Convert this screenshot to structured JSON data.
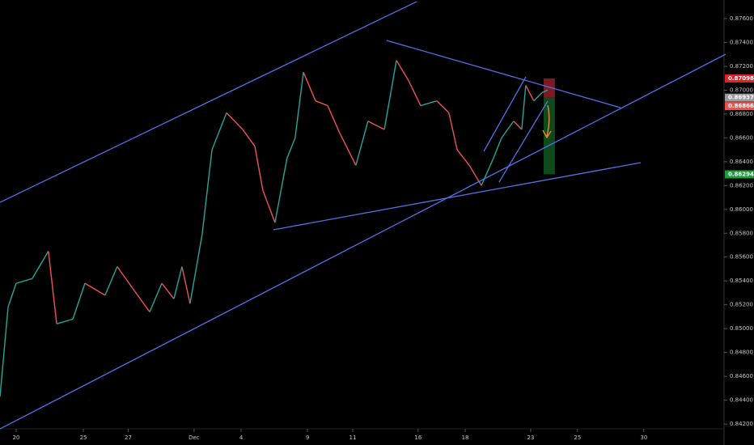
{
  "chart_data": {
    "type": "line",
    "x": [
      -0.72,
      -0.36,
      0,
      0.72,
      1.44,
      1.81,
      2.53,
      3.07,
      3.97,
      4.51,
      5.42,
      5.96,
      6.5,
      7.04,
      7.4,
      7.76,
      8.3,
      8.74,
      9.39,
      10.11,
      10.65,
      11.01,
      11.55,
      12.09,
      12.45,
      12.82,
      13.36,
      13.9,
      14.44,
      15.16,
      15.7,
      16.43,
      16.97,
      17.51,
      18.05,
      18.77,
      19.31,
      19.68,
      20.22,
      20.76,
      21.3,
      21.66,
      22.2,
      22.56,
      22.74,
      23.1,
      23.47,
      23.72
    ],
    "values": [
      0.8443,
      0.8518,
      0.8538,
      0.8542,
      0.8565,
      0.8504,
      0.8508,
      0.8538,
      0.8528,
      0.8552,
      0.8528,
      0.8514,
      0.8538,
      0.8525,
      0.8552,
      0.8521,
      0.8579,
      0.865,
      0.8681,
      0.8667,
      0.8653,
      0.8616,
      0.8589,
      0.8643,
      0.866,
      0.8715,
      0.8691,
      0.8687,
      0.8664,
      0.8637,
      0.8674,
      0.8667,
      0.8725,
      0.8708,
      0.8687,
      0.8691,
      0.8681,
      0.865,
      0.8637,
      0.862,
      0.8643,
      0.866,
      0.8674,
      0.8667,
      0.8704,
      0.8691,
      0.8698,
      0.87
    ],
    "up_color": "#26a69a",
    "down_color": "#ef5350",
    "xlim": [
      -0.72,
      31.59
    ],
    "xticks": [
      {
        "value": 0,
        "label": "20"
      },
      {
        "value": 3,
        "label": "25"
      },
      {
        "value": 5,
        "label": "27"
      },
      {
        "value": 7.94,
        "label": "Dec"
      },
      {
        "value": 10.04,
        "label": "4"
      },
      {
        "value": 13,
        "label": "9"
      },
      {
        "value": 15.02,
        "label": "11"
      },
      {
        "value": 17.94,
        "label": "16"
      },
      {
        "value": 20.04,
        "label": "18"
      },
      {
        "value": 22.96,
        "label": "23"
      },
      {
        "value": 25.05,
        "label": "25"
      },
      {
        "value": 28.01,
        "label": "30"
      }
    ],
    "ylim": [
      0.84024,
      0.87756
    ],
    "yticks": [
      {
        "value": 0.842,
        "label": "0.84200"
      },
      {
        "value": 0.844,
        "label": "0.84400"
      },
      {
        "value": 0.846,
        "label": "0.84600"
      },
      {
        "value": 0.848,
        "label": "0.84800"
      },
      {
        "value": 0.85,
        "label": "0.85000"
      },
      {
        "value": 0.852,
        "label": "0.85200"
      },
      {
        "value": 0.854,
        "label": "0.85400"
      },
      {
        "value": 0.856,
        "label": "0.85600"
      },
      {
        "value": 0.858,
        "label": "0.85800"
      },
      {
        "value": 0.86,
        "label": "0.86000"
      },
      {
        "value": 0.862,
        "label": "0.86200"
      },
      {
        "value": 0.864,
        "label": "0.86400"
      },
      {
        "value": 0.866,
        "label": "0.86600"
      },
      {
        "value": 0.868,
        "label": "0.86800"
      },
      {
        "value": 0.87,
        "label": "0.87000"
      },
      {
        "value": 0.872,
        "label": "0.87200"
      },
      {
        "value": 0.874,
        "label": "0.87400"
      },
      {
        "value": 0.876,
        "label": "0.87600"
      }
    ],
    "grid": false,
    "trend_lines": [
      {
        "x": [
          -0.72,
          17.87
        ],
        "y": [
          0.86059,
          0.87742
        ],
        "color": "#5472e8"
      },
      {
        "x": [
          -0.72,
          31.66
        ],
        "y": [
          0.84159,
          0.87301
        ],
        "color": "#5472e8"
      },
      {
        "x": [
          11.48,
          27.87
        ],
        "y": [
          0.85829,
          0.86392
        ],
        "color": "#5472e8"
      },
      {
        "x": [
          16.53,
          26.97
        ],
        "y": [
          0.87417,
          0.86853
        ],
        "color": "#5472e8"
      },
      {
        "x": [
          20.87,
          22.74
        ],
        "y": [
          0.86487,
          0.87111
        ],
        "color": "#5472e8"
      },
      {
        "x": [
          21.55,
          23.72
        ],
        "y": [
          0.86229,
          0.86908
        ],
        "color": "#5472e8"
      }
    ],
    "position": {
      "x": [
        23.54,
        24.04
      ],
      "entry": 0.86937,
      "stop": 0.87098,
      "target": 0.86294,
      "stop_color": "#7a1a22",
      "target_color": "#0f4a1c"
    },
    "price_labels": [
      {
        "value": 0.87098,
        "color": "#e0202a"
      },
      {
        "value": 0.86937,
        "color": "#9a9a9a"
      },
      {
        "value": 0.86866,
        "color": "#ef5350"
      },
      {
        "value": 0.86294,
        "color": "#1e9e3e"
      }
    ]
  }
}
